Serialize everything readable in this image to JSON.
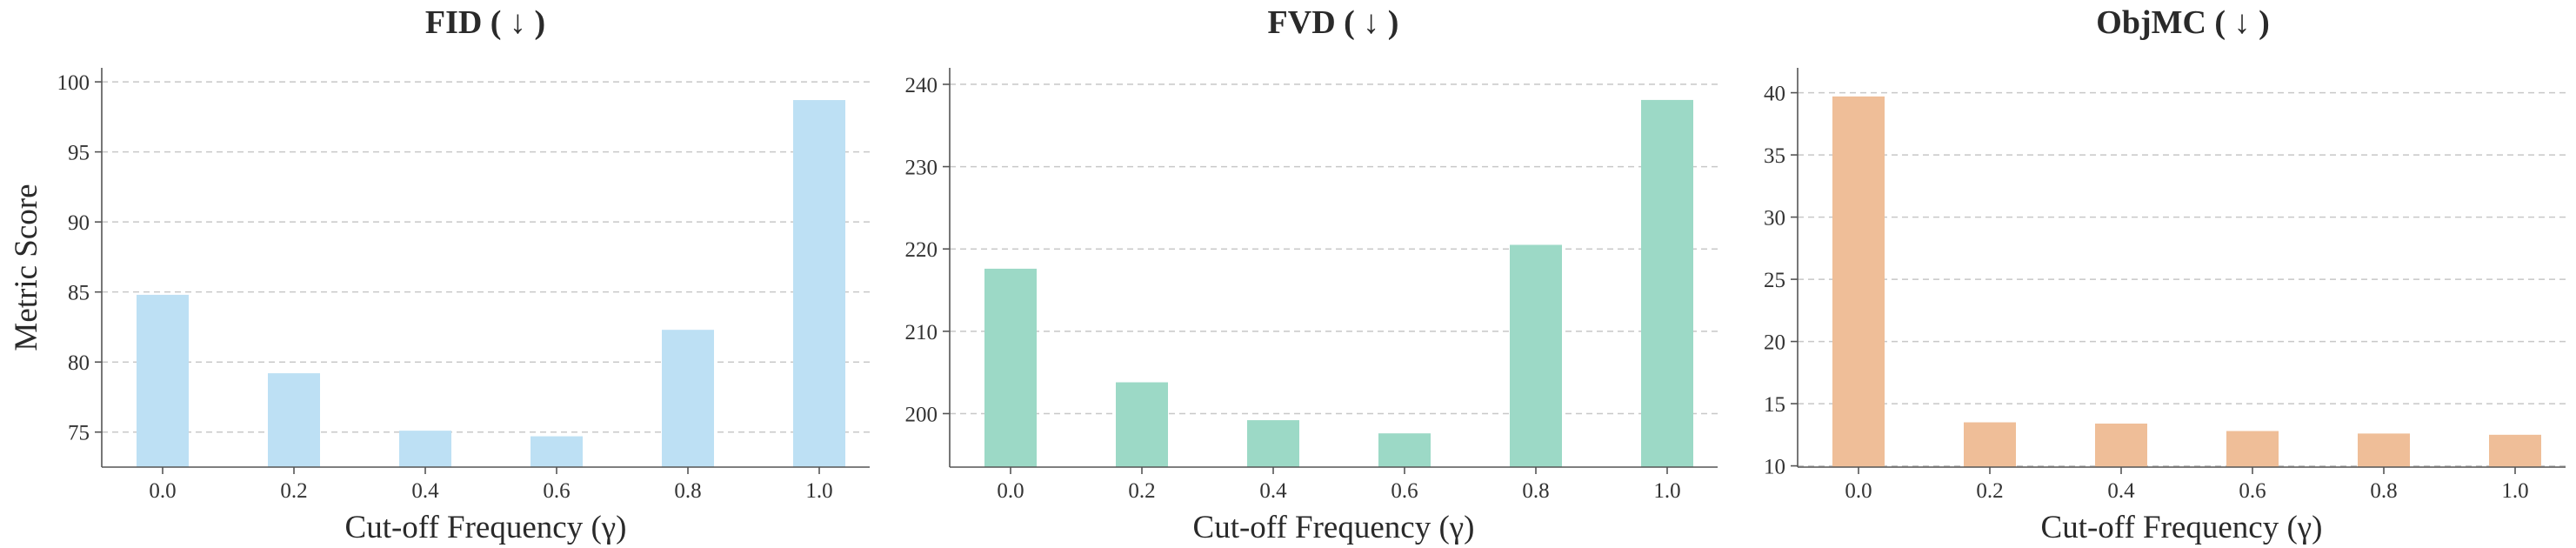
{
  "chart_data": [
    {
      "type": "bar",
      "title": "FID ( ↓ )",
      "xlabel": "Cut-off Frequency (γ)",
      "ylabel": "Metric Score",
      "categories": [
        "0.0",
        "0.2",
        "0.4",
        "0.6",
        "0.8",
        "1.0"
      ],
      "values": [
        84.8,
        79.2,
        75.1,
        74.7,
        82.3,
        98.7
      ],
      "ylim": [
        72.5,
        101
      ],
      "yticks": [
        75,
        80,
        85,
        90,
        95,
        100
      ],
      "color": "#bde0f4",
      "grid": true
    },
    {
      "type": "bar",
      "title": "FVD ( ↓ )",
      "xlabel": "Cut-off Frequency (γ)",
      "ylabel": "",
      "categories": [
        "0.0",
        "0.2",
        "0.4",
        "0.6",
        "0.8",
        "1.0"
      ],
      "values": [
        217.6,
        203.8,
        199.2,
        197.6,
        220.5,
        238.1
      ],
      "ylim": [
        193.5,
        242
      ],
      "yticks": [
        200,
        210,
        220,
        230,
        240
      ],
      "color": "#9cd9c6",
      "grid": true
    },
    {
      "type": "bar",
      "title": "ObjMC ( ↓ )",
      "xlabel": "Cut-off Frequency (γ)",
      "ylabel": "",
      "categories": [
        "0.0",
        "0.2",
        "0.4",
        "0.6",
        "0.8",
        "1.0"
      ],
      "values": [
        39.7,
        13.5,
        13.4,
        12.8,
        12.6,
        12.5
      ],
      "ylim": [
        9.9,
        42
      ],
      "yticks": [
        10,
        15,
        20,
        25,
        30,
        35,
        40
      ],
      "color": "#efbe98",
      "grid": true
    }
  ]
}
